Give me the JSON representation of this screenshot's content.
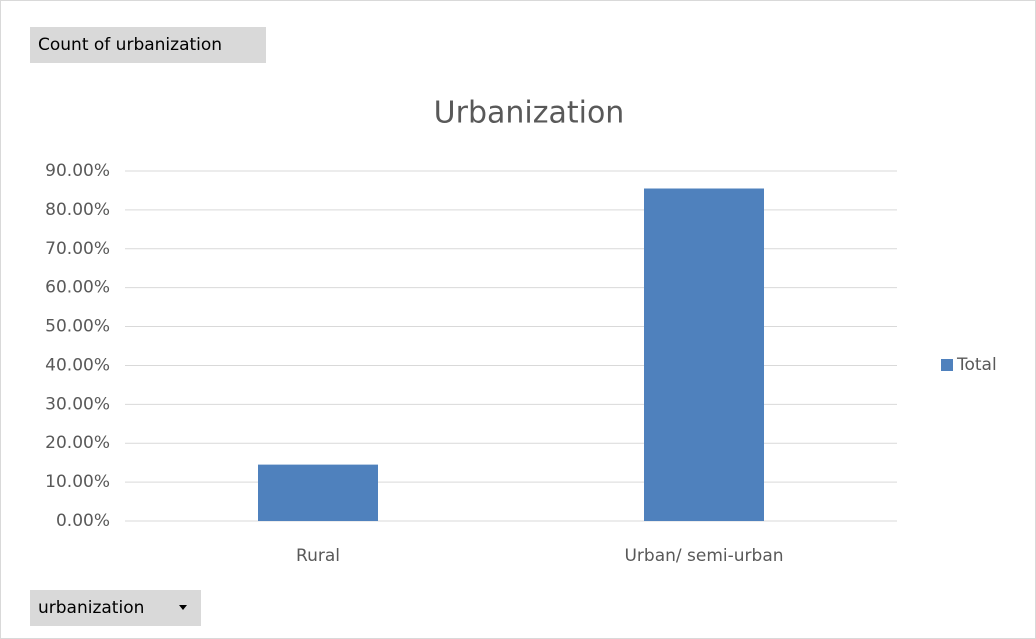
{
  "value_field_button": "Count of urbanization",
  "axis_field_button": "urbanization",
  "chart_data": {
    "type": "bar",
    "title": "Urbanization",
    "categories": [
      "Rural",
      "Urban/ semi-urban"
    ],
    "series": [
      {
        "name": "Total",
        "color": "#4f81bd",
        "values": [
          14.5,
          85.5
        ]
      }
    ],
    "ylim": [
      0,
      90
    ],
    "yticks": [
      {
        "value": 0,
        "label": "0.00%"
      },
      {
        "value": 10,
        "label": "10.00%"
      },
      {
        "value": 20,
        "label": "20.00%"
      },
      {
        "value": 30,
        "label": "30.00%"
      },
      {
        "value": 40,
        "label": "40.00%"
      },
      {
        "value": 50,
        "label": "50.00%"
      },
      {
        "value": 60,
        "label": "60.00%"
      },
      {
        "value": 70,
        "label": "70.00%"
      },
      {
        "value": 80,
        "label": "80.00%"
      },
      {
        "value": 90,
        "label": "90.00%"
      }
    ],
    "grid": true,
    "legend": "right"
  }
}
